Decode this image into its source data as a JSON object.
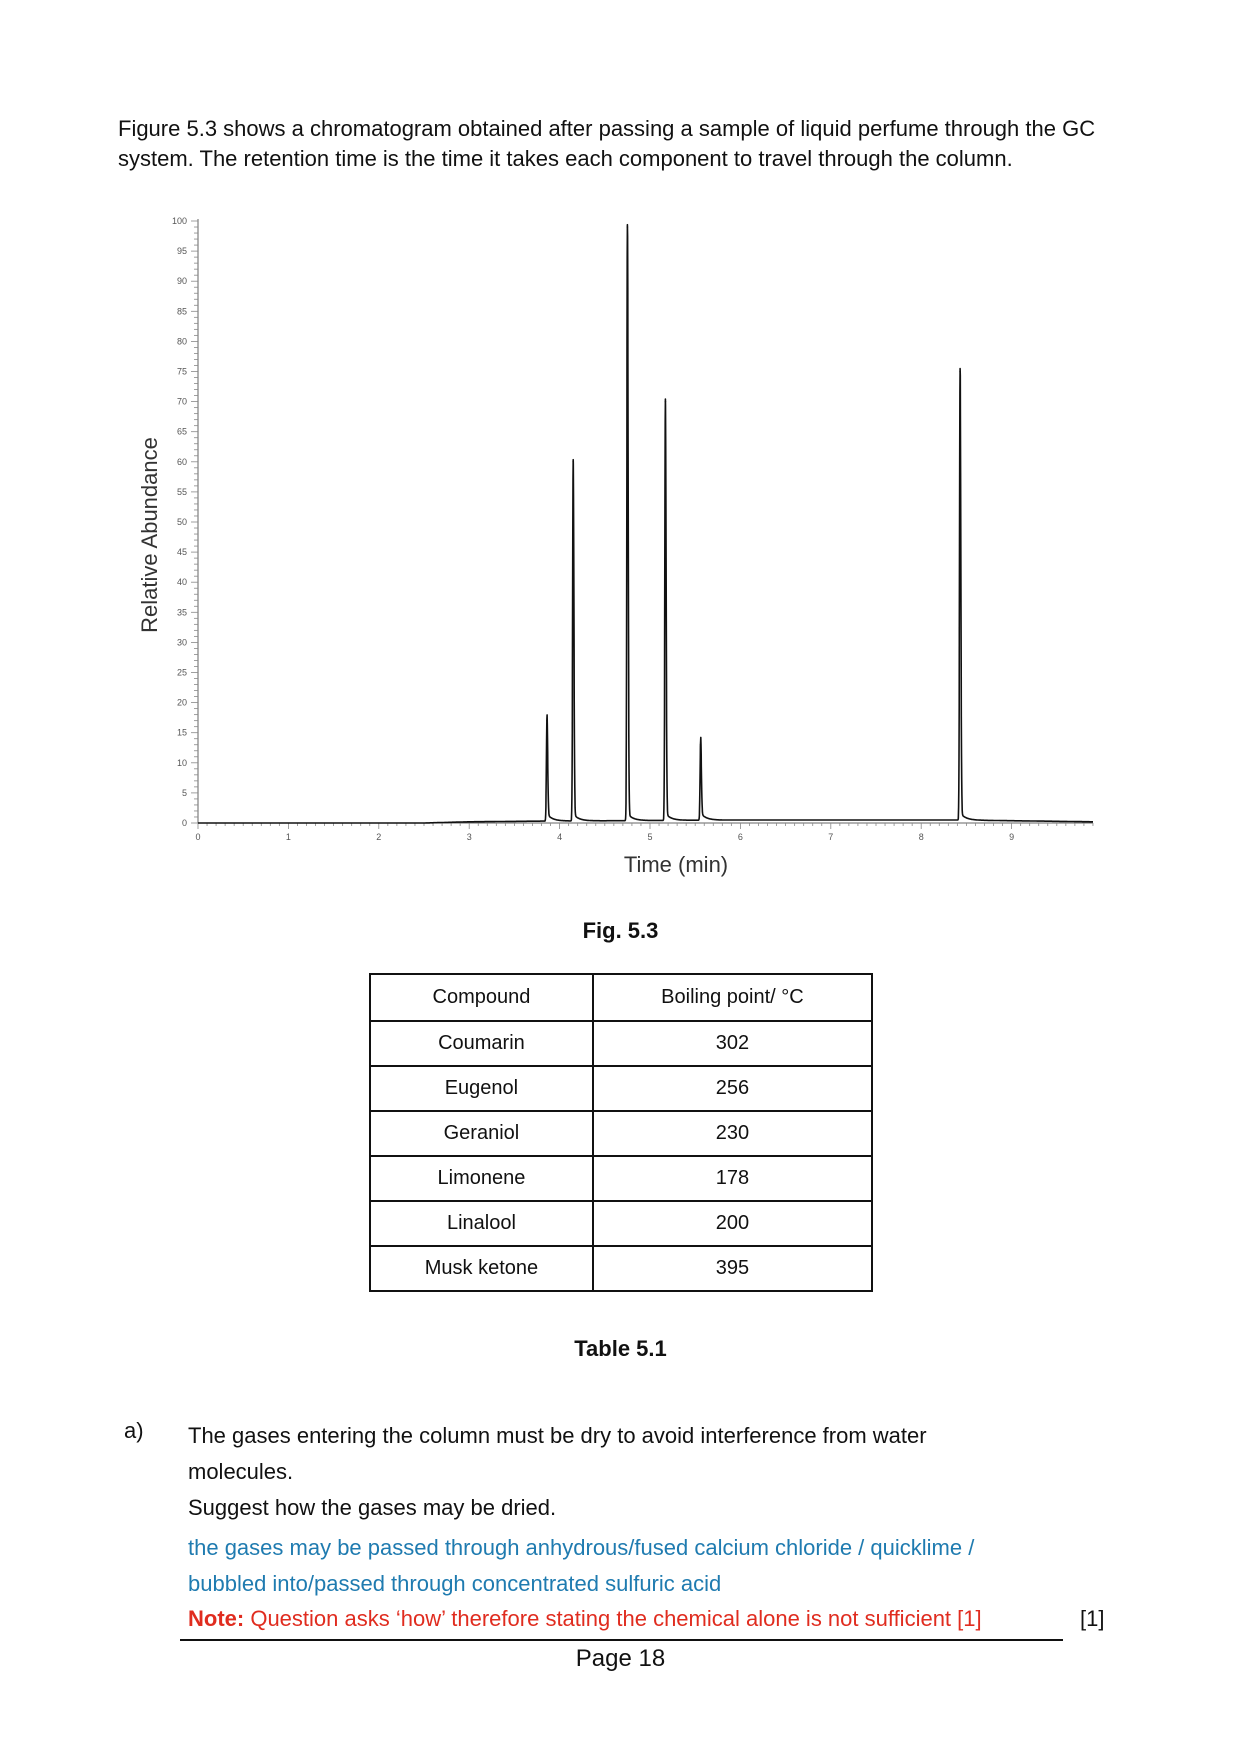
{
  "intro_text": "Figure 5.3 shows a chromatogram obtained after passing a sample of liquid perfume through the GC system. The retention time is the time it takes each component to travel through the column.",
  "chart_data": {
    "type": "line",
    "title": "",
    "xlabel": "Time (min)",
    "ylabel": "Relative Abundance",
    "xlim": [
      0,
      9.9
    ],
    "ylim": [
      0,
      100
    ],
    "x_ticks": [
      "0",
      "1",
      "2",
      "3",
      "4",
      "5",
      "6",
      "7",
      "8",
      "9"
    ],
    "y_ticks": [
      "0",
      "5",
      "10",
      "15",
      "20",
      "25",
      "30",
      "35",
      "40",
      "45",
      "50",
      "55",
      "60",
      "65",
      "70",
      "75",
      "80",
      "85",
      "90",
      "95",
      "100"
    ],
    "grid": false,
    "baseline": [
      [
        0,
        0
      ],
      [
        2.5,
        0
      ],
      [
        3,
        0.2
      ],
      [
        3.7,
        0.3
      ],
      [
        6.0,
        0.5
      ],
      [
        8.4,
        0.5
      ],
      [
        9.9,
        0.2
      ]
    ],
    "peaks": [
      {
        "time": 3.86,
        "height": 17
      },
      {
        "time": 4.15,
        "height": 60
      },
      {
        "time": 4.75,
        "height": 99
      },
      {
        "time": 5.17,
        "height": 70
      },
      {
        "time": 5.56,
        "height": 13
      },
      {
        "time": 8.43,
        "height": 75
      }
    ]
  },
  "figure_caption": "Fig. 5.3",
  "table": {
    "headers": [
      "Compound",
      "Boiling point/ °C"
    ],
    "rows": [
      [
        "Coumarin",
        "302"
      ],
      [
        "Eugenol",
        "256"
      ],
      [
        "Geraniol",
        "230"
      ],
      [
        "Limonene",
        "178"
      ],
      [
        "Linalool",
        "200"
      ],
      [
        "Musk ketone",
        "395"
      ]
    ]
  },
  "table_caption": "Table 5.1",
  "question": {
    "label": "a)",
    "line1": "The gases entering the column must be dry to avoid interference from water",
    "line2": "molecules.",
    "line3": "Suggest how the gases may be dried."
  },
  "answer": {
    "line1": "the gases may be passed through anhydrous/fused calcium chloride / quicklime /",
    "line2": "bubbled into/passed through concentrated sulfuric acid",
    "note_label": "Note:",
    "note_text": " Question asks ‘how’ therefore stating the chemical alone is not sufficient [1]"
  },
  "marks": "[1]",
  "page_number": "Page 18",
  "colors": {
    "answer": "#1f7bb0",
    "note": "#e02c1f",
    "text": "#111111"
  }
}
